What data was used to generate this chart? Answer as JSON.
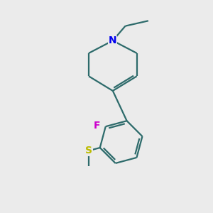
{
  "bg_color": "#ebebeb",
  "bond_color": "#2d6b6b",
  "N_color": "#0000ee",
  "F_color": "#cc00cc",
  "S_color": "#bbbb00",
  "N_label": "N",
  "F_label": "F",
  "S_label": "S",
  "lw": 1.6
}
